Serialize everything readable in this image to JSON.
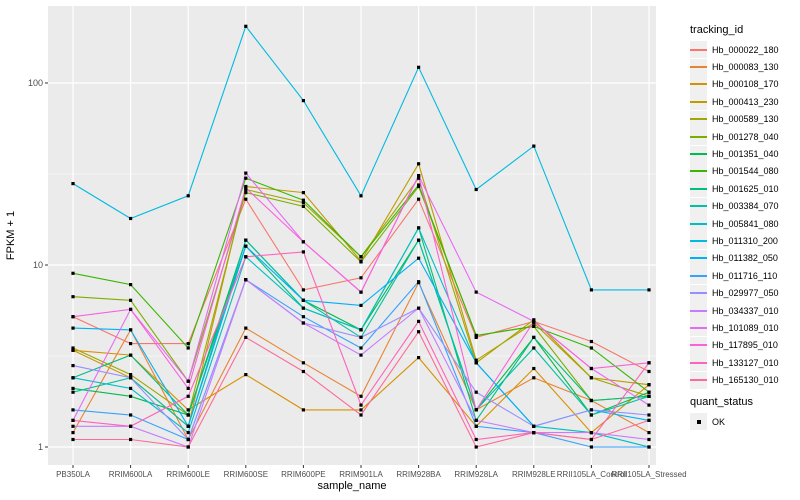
{
  "legend": {
    "tracking_title": "tracking_id",
    "quant_title": "quant_status",
    "quant_label": "OK"
  },
  "chart_data": {
    "type": "line",
    "title": "",
    "xlabel": "sample_name",
    "ylabel": "FPKM + 1",
    "y_scale": "log10",
    "y_ticks": [
      1,
      10,
      100
    ],
    "y_tick_labels": [
      "1",
      "10",
      "100"
    ],
    "ylim": [
      1,
      250
    ],
    "grid": "white major and minor on grey panel",
    "panel_background": "#EBEBEB",
    "marker": "small black square (quant_status OK)",
    "legend_position": "right",
    "x_categories": [
      "PB350LA",
      "RRIM600LA",
      "RRIM600LE",
      "RRIM600SE",
      "RRIM600PE",
      "RRIM901LA",
      "RRIM928BA",
      "RRIM928LA",
      "RRIM928LE",
      "RRII105LA_Control",
      "RRII105LA_Stressed"
    ],
    "series": [
      {
        "name": "Hb_000022_180",
        "color": "#F8766D",
        "values": [
          5.2,
          3.7,
          3.7,
          23,
          7.3,
          8.5,
          23,
          4.0,
          4.9,
          3.8,
          2.6
        ]
      },
      {
        "name": "Hb_000083_130",
        "color": "#EA8331",
        "values": [
          1.2,
          4.4,
          1.1,
          4.5,
          2.9,
          1.9,
          8.0,
          1.6,
          2.4,
          1.8,
          1.2
        ]
      },
      {
        "name": "Hb_000108_170",
        "color": "#D89000",
        "values": [
          3.4,
          3.2,
          1.6,
          2.5,
          1.6,
          1.6,
          3.1,
          1.3,
          2.7,
          1.2,
          2.2
        ]
      },
      {
        "name": "Hb_000413_230",
        "color": "#C09B00",
        "values": [
          3.4,
          2.4,
          1.3,
          27,
          25,
          10.5,
          36,
          3.0,
          4.8,
          2.4,
          2.2
        ]
      },
      {
        "name": "Hb_000589_130",
        "color": "#A3A500",
        "values": [
          3.5,
          2.5,
          1.5,
          26,
          22,
          11.1,
          30,
          2.9,
          5.0,
          2.4,
          1.9
        ]
      },
      {
        "name": "Hb_001278_040",
        "color": "#7CAE00",
        "values": [
          6.7,
          6.4,
          2.3,
          25,
          21,
          10.4,
          27,
          4.1,
          4.6,
          1.8,
          1.9
        ]
      },
      {
        "name": "Hb_001351_040",
        "color": "#00BB4E",
        "values": [
          2.1,
          1.9,
          1.5,
          13.7,
          6.4,
          4.4,
          13.7,
          1.6,
          4.0,
          1.5,
          2.0
        ]
      },
      {
        "name": "Hb_001544_080",
        "color": "#39B600",
        "values": [
          9.0,
          7.8,
          3.5,
          30,
          22.7,
          11.1,
          27.5,
          4.1,
          4.6,
          3.5,
          2.0
        ]
      },
      {
        "name": "Hb_001625_010",
        "color": "#00BF7D",
        "values": [
          2.4,
          3.2,
          1.5,
          12.7,
          5.8,
          4.4,
          16,
          1.4,
          4.0,
          1.8,
          1.9
        ]
      },
      {
        "name": "Hb_003384_070",
        "color": "#00C1A3",
        "values": [
          2.0,
          2.4,
          1.3,
          13.7,
          6.4,
          4.0,
          13.7,
          1.6,
          3.5,
          1.5,
          1.9
        ]
      },
      {
        "name": "Hb_005841_080",
        "color": "#00BFC4",
        "values": [
          2.4,
          2.1,
          1.2,
          11.1,
          5.8,
          4.4,
          16,
          2.9,
          1.3,
          1.2,
          1.0
        ]
      },
      {
        "name": "Hb_011310_200",
        "color": "#00BAE0",
        "values": [
          28,
          18,
          24,
          205,
          80,
          24,
          122,
          26,
          45,
          7.3,
          7.3
        ]
      },
      {
        "name": "Hb_011382_050",
        "color": "#00B0F6",
        "values": [
          4.5,
          4.4,
          1.3,
          12.7,
          6.4,
          6.0,
          10.9,
          2.9,
          1.3,
          1.6,
          1.4
        ]
      },
      {
        "name": "Hb_011716_110",
        "color": "#35A2FF",
        "values": [
          1.6,
          1.5,
          1.1,
          8.3,
          5.2,
          3.5,
          8.1,
          1.3,
          1.2,
          1.0,
          1.0
        ]
      },
      {
        "name": "Hb_029977_050",
        "color": "#9590FF",
        "values": [
          2.8,
          2.4,
          1.1,
          8.3,
          4.8,
          4.0,
          5.8,
          2.0,
          1.3,
          1.6,
          1.5
        ]
      },
      {
        "name": "Hb_034337_010",
        "color": "#C77CFF",
        "values": [
          1.3,
          1.3,
          1.0,
          8.3,
          4.8,
          3.2,
          5.8,
          1.4,
          1.2,
          1.2,
          1.1
        ]
      },
      {
        "name": "Hb_101089_010",
        "color": "#E76BF3",
        "values": [
          1.4,
          5.7,
          2.3,
          32,
          13.4,
          7.1,
          31,
          7.1,
          4.9,
          2.7,
          1.7
        ]
      },
      {
        "name": "Hb_117895_010",
        "color": "#FA62DB",
        "values": [
          5.2,
          5.7,
          2.1,
          26.5,
          13.4,
          7.1,
          31,
          1.6,
          4.9,
          2.7,
          2.9
        ]
      },
      {
        "name": "Hb_133127_010",
        "color": "#FF62BC",
        "values": [
          1.4,
          1.3,
          1.9,
          11.1,
          11.8,
          1.7,
          4.9,
          1.1,
          1.2,
          1.1,
          2.9
        ]
      },
      {
        "name": "Hb_165130_010",
        "color": "#FF6A98",
        "values": [
          1.1,
          1.1,
          1.0,
          4.0,
          2.6,
          1.5,
          4.3,
          1.0,
          1.2,
          1.1,
          1.4
        ]
      }
    ]
  }
}
